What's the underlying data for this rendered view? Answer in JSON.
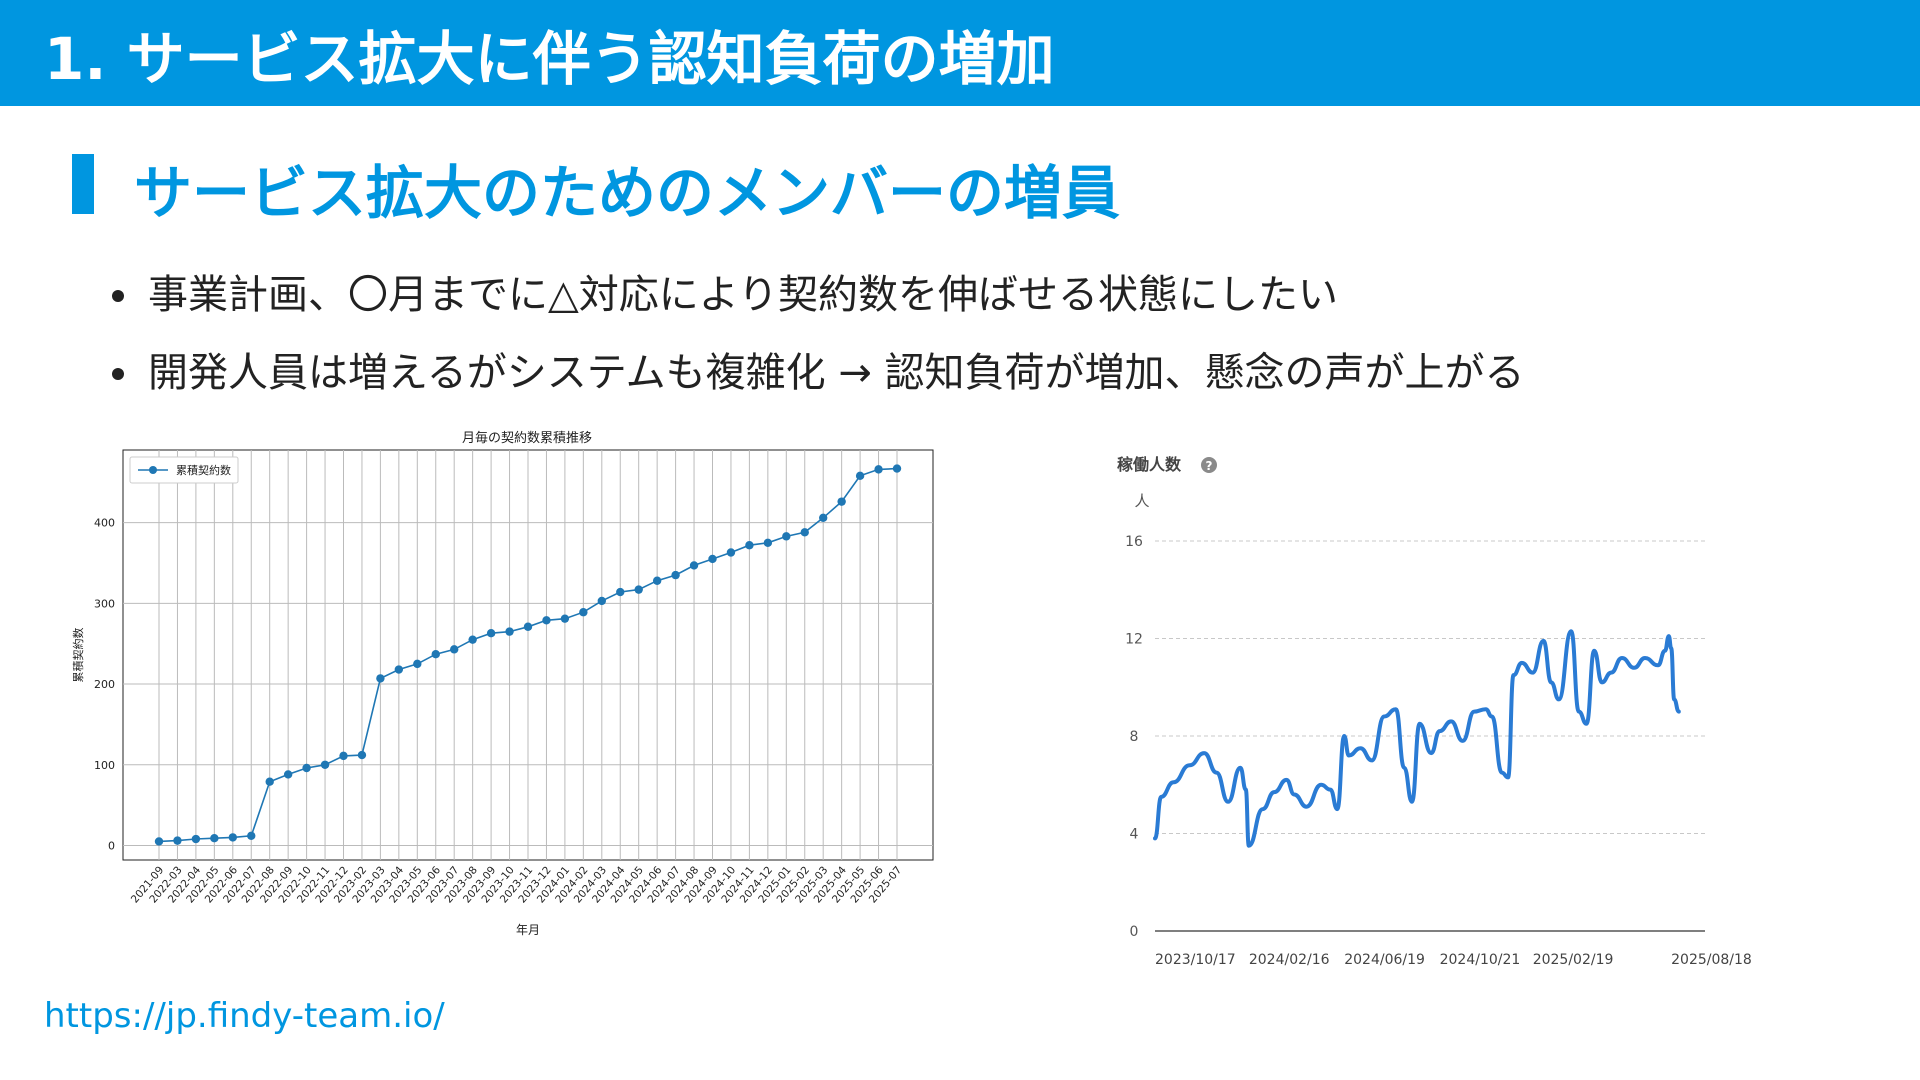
{
  "header": {
    "title": "1. サービス拡大に伴う認知負荷の増加"
  },
  "section": {
    "heading": "サービス拡大のためのメンバーの増員"
  },
  "bullets": [
    "事業計画、〇月までに△対応により契約数を伸ばせる状態にしたい",
    "開発人員は増えるがシステムも複雑化 → 認知負荷が増加、懸念の声が上がる"
  ],
  "footer": {
    "link": "https://jp.findy-team.io/"
  },
  "colors": {
    "brand": "#0096e0",
    "chart1_line": "#1f77b4",
    "chart2_line": "#2a7bd4"
  },
  "chart_data": [
    {
      "type": "line",
      "title": "月毎の契約数累積推移",
      "xlabel": "年月",
      "ylabel": "累積契約数",
      "legend": "top-left",
      "grid": true,
      "yticks": [
        0,
        100,
        200,
        300,
        400
      ],
      "ylim": [
        -18,
        490
      ],
      "categories": [
        "2021-09",
        "2022-03",
        "2022-04",
        "2022-05",
        "2022-06",
        "2022-07",
        "2022-08",
        "2022-09",
        "2022-10",
        "2022-11",
        "2022-12",
        "2023-02",
        "2023-03",
        "2023-04",
        "2023-05",
        "2023-06",
        "2023-07",
        "2023-08",
        "2023-09",
        "2023-10",
        "2023-11",
        "2023-12",
        "2024-01",
        "2024-02",
        "2024-03",
        "2024-04",
        "2024-05",
        "2024-06",
        "2024-07",
        "2024-08",
        "2024-09",
        "2024-10",
        "2024-11",
        "2024-12",
        "2025-01",
        "2025-02",
        "2025-03",
        "2025-04",
        "2025-05",
        "2025-06",
        "2025-07"
      ],
      "series": [
        {
          "name": "累積契約数",
          "values": [
            5,
            6,
            8,
            9,
            10,
            12,
            79,
            88,
            96,
            100,
            111,
            112,
            207,
            218,
            225,
            237,
            243,
            255,
            263,
            265,
            271,
            279,
            281,
            289,
            303,
            314,
            317,
            328,
            335,
            347,
            355,
            363,
            372,
            375,
            383,
            388,
            406,
            426,
            458,
            466,
            467
          ]
        }
      ]
    },
    {
      "type": "line",
      "title": "稼働人数",
      "unit_label": "人",
      "grid": true,
      "yticks": [
        0,
        4,
        8,
        12,
        16
      ],
      "ylim": [
        0,
        16
      ],
      "xticks": [
        "2023/10/17",
        "2024/02/16",
        "2024/06/19",
        "2024/10/21",
        "2025/02/19",
        "2025/08/18"
      ],
      "xlim": [
        "2023/10/17",
        "2025/10/01"
      ],
      "series": [
        {
          "name": "稼働人数",
          "x": [
            "2023/10/17",
            "2023/10/25",
            "2023/11/10",
            "2023/12/01",
            "2023/12/20",
            "2024/01/05",
            "2024/01/20",
            "2024/02/05",
            "2024/02/12",
            "2024/02/16",
            "2024/03/05",
            "2024/03/20",
            "2024/04/05",
            "2024/04/15",
            "2024/05/01",
            "2024/05/20",
            "2024/06/01",
            "2024/06/10",
            "2024/06/19",
            "2024/06/25",
            "2024/07/10",
            "2024/07/25",
            "2024/08/10",
            "2024/08/25",
            "2024/09/05",
            "2024/09/15",
            "2024/09/25",
            "2024/10/10",
            "2024/10/21",
            "2024/11/05",
            "2024/11/20",
            "2024/12/05",
            "2024/12/20",
            "2024/12/28",
            "2025/01/10",
            "2025/01/18",
            "2025/01/25",
            "2025/02/05",
            "2025/02/19",
            "2025/03/05",
            "2025/03/15",
            "2025/03/25",
            "2025/04/10",
            "2025/04/20",
            "2025/04/30",
            "2025/05/10",
            "2025/05/20",
            "2025/06/01",
            "2025/06/15",
            "2025/07/01",
            "2025/07/15",
            "2025/08/01",
            "2025/08/10",
            "2025/08/15",
            "2025/08/18",
            "2025/08/22",
            "2025/08/28"
          ],
          "values": [
            3.8,
            5.5,
            6.1,
            6.8,
            7.3,
            6.5,
            5.3,
            6.7,
            5.8,
            3.5,
            5.0,
            5.7,
            6.2,
            5.6,
            5.1,
            6.0,
            5.8,
            5.0,
            8.0,
            7.2,
            7.5,
            7.0,
            8.8,
            9.1,
            6.7,
            5.3,
            8.5,
            7.3,
            8.2,
            8.6,
            7.8,
            9.0,
            9.1,
            8.8,
            6.5,
            6.3,
            10.5,
            11.0,
            10.6,
            11.9,
            10.2,
            9.5,
            12.3,
            9.0,
            8.5,
            11.5,
            10.2,
            10.6,
            11.2,
            10.8,
            11.2,
            10.9,
            11.5,
            12.1,
            11.6,
            9.5,
            9.0
          ]
        }
      ]
    }
  ]
}
